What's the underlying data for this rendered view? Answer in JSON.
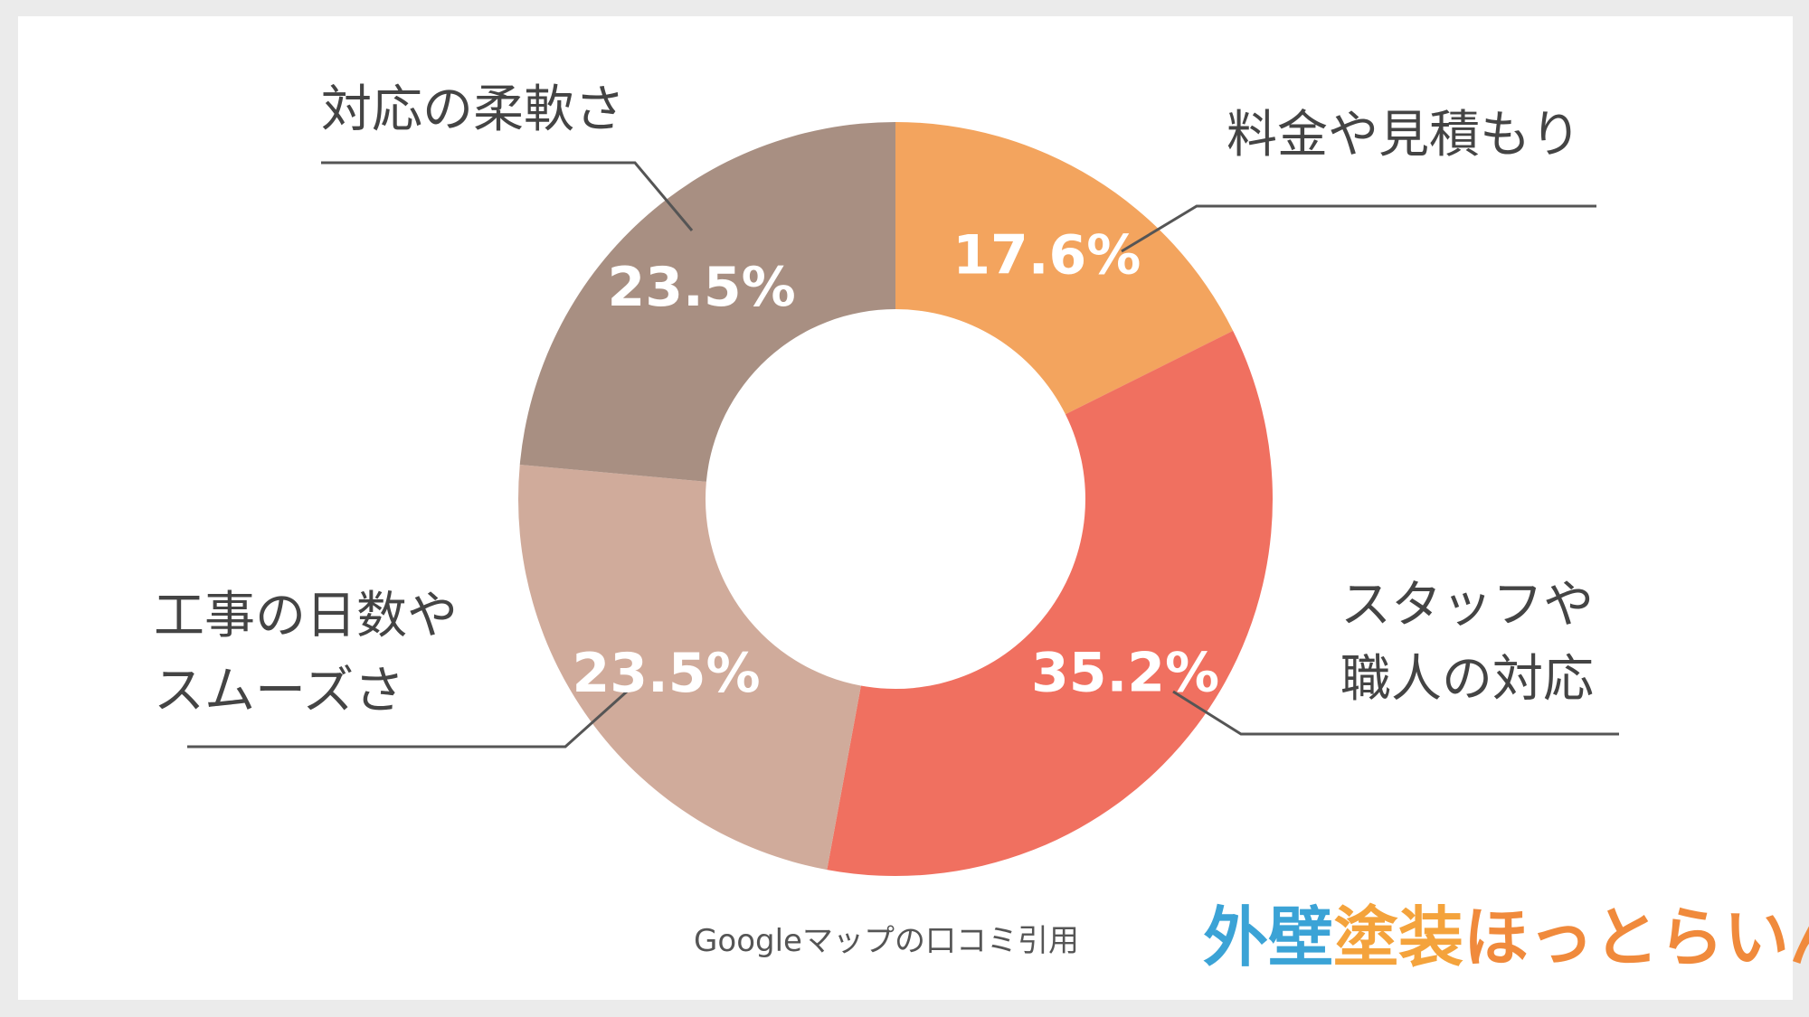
{
  "chart_data": {
    "type": "pie",
    "donut": true,
    "categories": [
      "料金や見積もり",
      "スタッフや職人の対応",
      "工事の日数やスムーズさ",
      "対応の柔軟さ"
    ],
    "category_lines": [
      [
        "料金や見積もり"
      ],
      [
        "スタッフや",
        "職人の対応"
      ],
      [
        "工事の日数や",
        "スムーズさ"
      ],
      [
        "対応の柔軟さ"
      ]
    ],
    "values": [
      17.6,
      35.2,
      23.5,
      23.5
    ],
    "value_labels": [
      "17.6%",
      "35.2%",
      "23.5%",
      "23.5%"
    ],
    "colors": [
      "#f3a45e",
      "#f07060",
      "#d0ab9b",
      "#a88f82"
    ],
    "start_angle_deg": 0,
    "direction": "clockwise",
    "legend": "none",
    "leader_lines": true
  },
  "source_note": "Googleマップの口コミ引用",
  "logo": {
    "parts": [
      {
        "text": "外壁",
        "color": "#3ba3d6"
      },
      {
        "text": "塗装",
        "color": "#f4a33c"
      },
      {
        "text": "ほっとらいん",
        "color": "#f08a3c"
      }
    ]
  }
}
